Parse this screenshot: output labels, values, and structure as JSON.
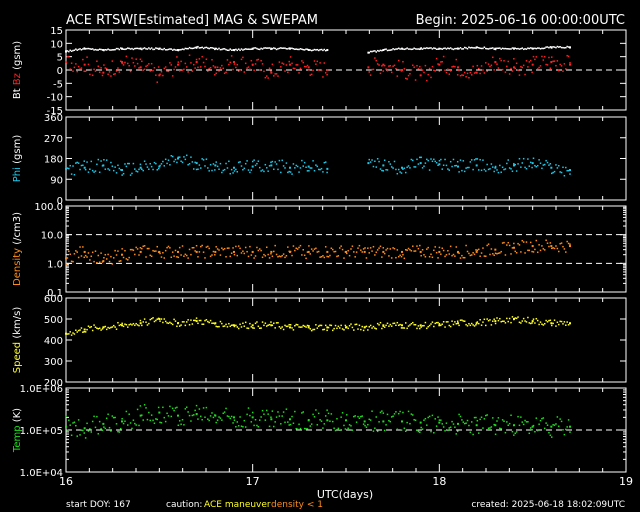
{
  "header": {
    "title": "ACE RTSW[Estimated] MAG & SWEPAM",
    "begin": "Begin: 2025-06-16 00:00:00UTC"
  },
  "footer": {
    "start_doy": "start DOY: 167",
    "caution_label": "caution:",
    "caution_maneuver": "ACE maneuver",
    "caution_density": "density < 1",
    "created": "created: 2025-06-18 18:02:09UTC"
  },
  "colors": {
    "bt": "#ffffff",
    "bz": "#ff2020",
    "phi": "#20c8e8",
    "density": "#ff8c1a",
    "speed": "#ffff20",
    "temp": "#20dd20",
    "caution_maneuver": "#ffff20",
    "caution_density": "#ff8c1a"
  },
  "chart_data": [
    {
      "type": "scatter",
      "title": "",
      "ylabel_parts": [
        "Bt",
        "Bz",
        "(gsm)"
      ],
      "yticks": [
        "15",
        "10",
        "5",
        "0",
        "-5",
        "-10",
        "-15"
      ],
      "ylim": [
        -15,
        15
      ],
      "dashed_reference": [
        0
      ],
      "gap": [
        17.4,
        17.62
      ],
      "series": [
        {
          "name": "Bt",
          "color_key": "bt",
          "x": [
            16.0,
            16.1,
            16.2,
            16.3,
            16.4,
            16.5,
            16.6,
            16.7,
            16.8,
            16.9,
            17.0,
            17.1,
            17.2,
            17.3,
            17.4,
            17.62,
            17.7,
            17.8,
            17.9,
            18.0,
            18.1,
            18.2,
            18.3,
            18.4,
            18.5,
            18.6,
            18.7
          ],
          "values": [
            7,
            8,
            7.5,
            8,
            8,
            8,
            7.5,
            8.5,
            8,
            7.5,
            8,
            8,
            8,
            7.5,
            7.5,
            6.5,
            7.5,
            8,
            8,
            8,
            8,
            8.5,
            8,
            8,
            8,
            8.5,
            8.5
          ]
        },
        {
          "name": "Bz",
          "color_key": "bz",
          "x": [
            16.0,
            16.1,
            16.2,
            16.3,
            16.4,
            16.5,
            16.6,
            16.7,
            16.8,
            16.9,
            17.0,
            17.1,
            17.2,
            17.3,
            17.4,
            17.62,
            17.7,
            17.8,
            17.9,
            18.0,
            18.1,
            18.2,
            18.3,
            18.4,
            18.5,
            18.6,
            18.7
          ],
          "values": [
            3,
            2,
            -1,
            3,
            1,
            -2,
            2,
            3,
            1,
            3,
            2,
            -1,
            2,
            1,
            0,
            1,
            2,
            0,
            -2,
            2,
            1,
            -1,
            3,
            1,
            2,
            3,
            2
          ]
        }
      ]
    },
    {
      "type": "scatter",
      "title": "",
      "ylabel": "Phi (gsm)",
      "yticks": [
        "360",
        "270",
        "180",
        "90",
        "0"
      ],
      "ylim": [
        0,
        360
      ],
      "gap": [
        17.4,
        17.62
      ],
      "series": [
        {
          "name": "Phi",
          "color_key": "phi",
          "x": [
            16.0,
            16.1,
            16.2,
            16.3,
            16.4,
            16.5,
            16.6,
            16.7,
            16.8,
            16.9,
            17.0,
            17.1,
            17.2,
            17.3,
            17.4,
            17.62,
            17.7,
            17.8,
            17.9,
            18.0,
            18.1,
            18.2,
            18.3,
            18.4,
            18.5,
            18.6,
            18.7
          ],
          "values": [
            135,
            140,
            150,
            130,
            140,
            145,
            180,
            160,
            150,
            140,
            145,
            150,
            140,
            145,
            135,
            160,
            150,
            140,
            160,
            155,
            145,
            150,
            140,
            150,
            160,
            140,
            130
          ]
        }
      ]
    },
    {
      "type": "scatter",
      "title": "",
      "ylabel": "Density (/cm3)",
      "yticks": [
        "100.0",
        "10.0",
        "1.0",
        "0.1"
      ],
      "ylim": [
        0.1,
        100
      ],
      "log_scale": true,
      "dashed_reference": [
        10,
        1
      ],
      "series": [
        {
          "name": "Density",
          "color_key": "density",
          "x": [
            16.0,
            16.1,
            16.2,
            16.3,
            16.4,
            16.5,
            16.6,
            16.7,
            16.8,
            16.9,
            17.0,
            17.1,
            17.2,
            17.3,
            17.4,
            17.5,
            17.6,
            17.7,
            17.8,
            17.9,
            18.0,
            18.1,
            18.2,
            18.3,
            18.4,
            18.5,
            18.6,
            18.7
          ],
          "values": [
            1.5,
            2.5,
            1.2,
            2.0,
            2.5,
            2.5,
            2.5,
            2.5,
            2.5,
            2.5,
            2.5,
            2.5,
            2.5,
            2.5,
            2.5,
            2.5,
            2.5,
            2.5,
            2.5,
            2.5,
            2.5,
            2.5,
            2.5,
            3,
            3.5,
            4,
            4,
            4
          ]
        }
      ]
    },
    {
      "type": "scatter",
      "title": "",
      "ylabel": "Speed (km/s)",
      "yticks": [
        "600",
        "500",
        "400",
        "300",
        "200"
      ],
      "ylim": [
        200,
        600
      ],
      "series": [
        {
          "name": "Speed",
          "color_key": "speed",
          "x": [
            16.0,
            16.1,
            16.2,
            16.3,
            16.4,
            16.5,
            16.6,
            16.7,
            16.8,
            16.9,
            17.0,
            17.1,
            17.2,
            17.3,
            17.4,
            17.5,
            17.6,
            17.7,
            17.8,
            17.9,
            18.0,
            18.1,
            18.2,
            18.3,
            18.4,
            18.5,
            18.6,
            18.7
          ],
          "values": [
            430,
            450,
            460,
            470,
            480,
            500,
            480,
            490,
            480,
            470,
            470,
            470,
            460,
            460,
            460,
            460,
            460,
            470,
            470,
            470,
            470,
            480,
            480,
            490,
            500,
            490,
            480,
            480
          ]
        }
      ]
    },
    {
      "type": "scatter",
      "title": "",
      "ylabel": "Temp (K)",
      "yticks": [
        "1.0E+06",
        "1.0E+05",
        "1.0E+04"
      ],
      "ylim": [
        10000,
        1000000
      ],
      "log_scale": true,
      "dashed_reference": [
        100000
      ],
      "series": [
        {
          "name": "Temp",
          "color_key": "temp",
          "x": [
            16.0,
            16.1,
            16.2,
            16.3,
            16.4,
            16.5,
            16.6,
            16.7,
            16.8,
            16.9,
            17.0,
            17.1,
            17.2,
            17.3,
            17.4,
            17.5,
            17.6,
            17.7,
            17.8,
            17.9,
            18.0,
            18.1,
            18.2,
            18.3,
            18.4,
            18.5,
            18.6,
            18.7
          ],
          "values": [
            120000,
            110000,
            140000,
            160000,
            220000,
            260000,
            220000,
            240000,
            220000,
            200000,
            200000,
            180000,
            180000,
            170000,
            170000,
            170000,
            160000,
            160000,
            160000,
            150000,
            150000,
            140000,
            130000,
            130000,
            130000,
            120000,
            120000,
            120000
          ]
        }
      ]
    }
  ],
  "xaxis": {
    "ticks": [
      "16",
      "17",
      "18",
      "19"
    ],
    "xlim": [
      16,
      19
    ],
    "xlabel": "UTC(days)"
  }
}
